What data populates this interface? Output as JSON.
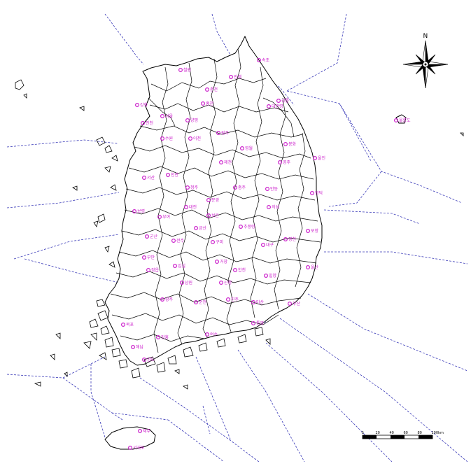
{
  "compass": {
    "north_label": "N"
  },
  "scale_bar": {
    "ticks": [
      "0",
      "20",
      "40",
      "60",
      "80",
      "100km"
    ]
  },
  "stations": [
    {
      "name": "철원"
    },
    {
      "name": "속초"
    },
    {
      "name": "인제"
    },
    {
      "name": "춘천"
    },
    {
      "name": "강릉"
    },
    {
      "name": "대관령"
    },
    {
      "name": "홍천"
    },
    {
      "name": "원주"
    },
    {
      "name": "영월"
    },
    {
      "name": "양평"
    },
    {
      "name": "이천"
    },
    {
      "name": "서울"
    },
    {
      "name": "인천"
    },
    {
      "name": "강화"
    },
    {
      "name": "수원"
    },
    {
      "name": "울릉도"
    },
    {
      "name": "제천"
    },
    {
      "name": "충주"
    },
    {
      "name": "울진"
    },
    {
      "name": "봉화"
    },
    {
      "name": "서산"
    },
    {
      "name": "천안"
    },
    {
      "name": "청주"
    },
    {
      "name": "영주"
    },
    {
      "name": "문경"
    },
    {
      "name": "영덕"
    },
    {
      "name": "보은"
    },
    {
      "name": "안동"
    },
    {
      "name": "의성"
    },
    {
      "name": "보령"
    },
    {
      "name": "부여"
    },
    {
      "name": "대전"
    },
    {
      "name": "금산"
    },
    {
      "name": "추풍령"
    },
    {
      "name": "구미"
    },
    {
      "name": "포항"
    },
    {
      "name": "영천"
    },
    {
      "name": "대구"
    },
    {
      "name": "군산"
    },
    {
      "name": "전주"
    },
    {
      "name": "부안"
    },
    {
      "name": "임실"
    },
    {
      "name": "거창"
    },
    {
      "name": "합천"
    },
    {
      "name": "밀양"
    },
    {
      "name": "울산"
    },
    {
      "name": "정읍"
    },
    {
      "name": "남원"
    },
    {
      "name": "산청"
    },
    {
      "name": "부산"
    },
    {
      "name": "광주"
    },
    {
      "name": "순천"
    },
    {
      "name": "진주"
    },
    {
      "name": "마산"
    },
    {
      "name": "통영"
    },
    {
      "name": "목포"
    },
    {
      "name": "해남"
    },
    {
      "name": "장흥"
    },
    {
      "name": "여수"
    },
    {
      "name": "완도"
    },
    {
      "name": "제주"
    },
    {
      "name": "서귀포"
    }
  ]
}
